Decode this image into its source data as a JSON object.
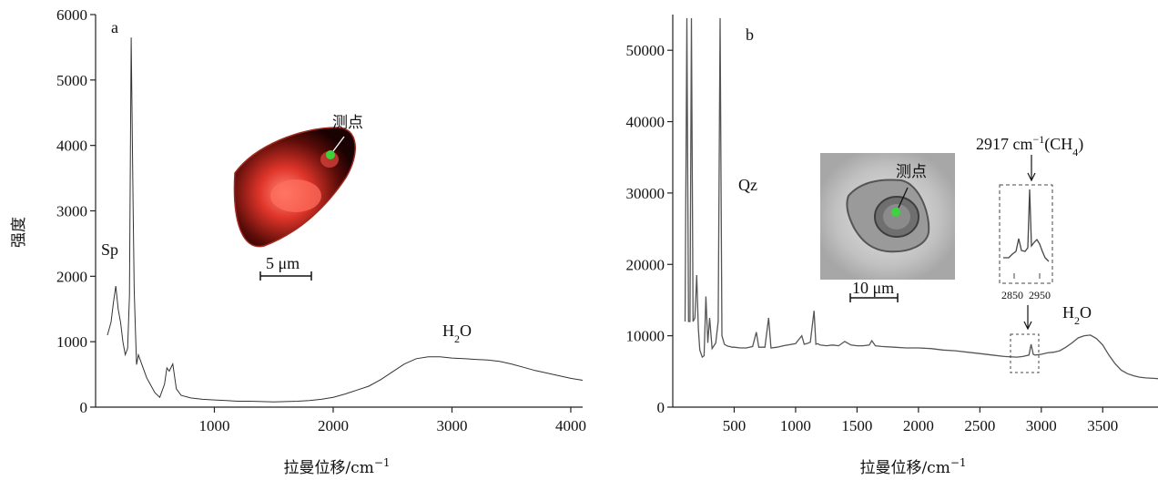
{
  "chart_data": [
    {
      "panel": "a",
      "type": "line",
      "xlabel": "拉曼位移/cm⁻¹",
      "ylabel": "强度",
      "xlim": [
        0,
        4100
      ],
      "ylim": [
        0,
        6000
      ],
      "x_ticks": [
        "1000",
        "2000",
        "3000",
        "4000"
      ],
      "y_ticks": [
        "0",
        "1000",
        "2000",
        "3000",
        "4000",
        "5000",
        "6000"
      ],
      "series": [
        {
          "x": [
            100,
            130,
            150,
            170,
            190,
            210,
            230,
            250,
            270,
            285,
            300,
            315,
            325,
            335,
            345,
            360,
            380,
            400,
            430,
            460,
            500,
            540,
            580,
            600,
            620,
            650,
            680,
            720,
            800,
            900,
            1000,
            1100,
            1200,
            1300,
            1400,
            1500,
            1600,
            1700,
            1800,
            1900,
            2000,
            2100,
            2200,
            2300,
            2400,
            2500,
            2600,
            2700,
            2800,
            2900,
            3000,
            3100,
            3200,
            3300,
            3400,
            3500,
            3600,
            3700,
            3800,
            3900,
            4000,
            4100
          ],
          "y": [
            1100,
            1300,
            1600,
            1850,
            1500,
            1300,
            1000,
            800,
            900,
            1700,
            5650,
            3200,
            1800,
            1200,
            650,
            800,
            700,
            600,
            450,
            350,
            220,
            150,
            350,
            600,
            550,
            660,
            280,
            180,
            140,
            120,
            110,
            100,
            90,
            90,
            85,
            80,
            85,
            90,
            100,
            120,
            150,
            200,
            260,
            320,
            420,
            540,
            660,
            740,
            770,
            770,
            750,
            740,
            730,
            720,
            700,
            660,
            610,
            560,
            520,
            480,
            440,
            410
          ]
        }
      ],
      "annotations": {
        "panel_letter": "a",
        "peak_sp": "Sp",
        "peak_h2o": "H₂O",
        "inset_point": "测点",
        "scale_bar": "5 μm"
      }
    },
    {
      "panel": "b",
      "type": "line",
      "xlabel": "拉曼位移/cm⁻¹",
      "xlim": [
        0,
        3950
      ],
      "ylim": [
        0,
        55000
      ],
      "x_ticks": [
        "500",
        "1000",
        "1500",
        "2000",
        "2500",
        "3000",
        "3500"
      ],
      "y_ticks": [
        "0",
        "10000",
        "20000",
        "30000",
        "40000",
        "50000"
      ],
      "series": [
        {
          "x": [
            100,
            115,
            128,
            140,
            152,
            165,
            180,
            195,
            208,
            220,
            240,
            255,
            270,
            285,
            300,
            320,
            350,
            370,
            385,
            400,
            420,
            440,
            455,
            465,
            480,
            500,
            550,
            600,
            650,
            680,
            700,
            750,
            780,
            800,
            850,
            900,
            1000,
            1050,
            1070,
            1090,
            1120,
            1150,
            1165,
            1180,
            1200,
            1250,
            1300,
            1350,
            1400,
            1450,
            1500,
            1550,
            1600,
            1620,
            1650,
            1700,
            1800,
            1900,
            2000,
            2100,
            2200,
            2300,
            2400,
            2500,
            2600,
            2700,
            2800,
            2850,
            2900,
            2917,
            2935,
            2950,
            3000,
            3050,
            3100,
            3150,
            3200,
            3250,
            3300,
            3350,
            3400,
            3450,
            3500,
            3550,
            3600,
            3650,
            3700,
            3750,
            3800,
            3850,
            3950
          ],
          "y": [
            12000,
            54500,
            12000,
            12000,
            54500,
            12000,
            12500,
            18500,
            11000,
            8000,
            7000,
            7200,
            15500,
            9000,
            12500,
            8200,
            9000,
            12000,
            54500,
            10000,
            8800,
            8600,
            8500,
            8500,
            8400,
            8400,
            8300,
            8300,
            8500,
            10500,
            8400,
            8400,
            12500,
            8300,
            8400,
            8600,
            8900,
            10000,
            8800,
            8900,
            9100,
            13500,
            8800,
            8900,
            8700,
            8600,
            8700,
            8600,
            9200,
            8700,
            8600,
            8600,
            8700,
            9300,
            8600,
            8500,
            8400,
            8300,
            8300,
            8200,
            8000,
            7900,
            7700,
            7500,
            7300,
            7100,
            7000,
            7100,
            7300,
            8800,
            7400,
            7300,
            7400,
            7600,
            7700,
            7900,
            8400,
            9000,
            9700,
            10000,
            10100,
            9600,
            8700,
            7300,
            6100,
            5200,
            4700,
            4400,
            4200,
            4100,
            4000
          ]
        }
      ],
      "annotations": {
        "panel_letter": "b",
        "peak_qz": "Qz",
        "peak_h2o": "H₂O",
        "peak_ch4": "2917 cm⁻¹(CH₄)",
        "inset_point": "测点",
        "scale_bar": "10 μm",
        "inset_ticks": [
          "2850",
          "2950"
        ]
      }
    }
  ]
}
